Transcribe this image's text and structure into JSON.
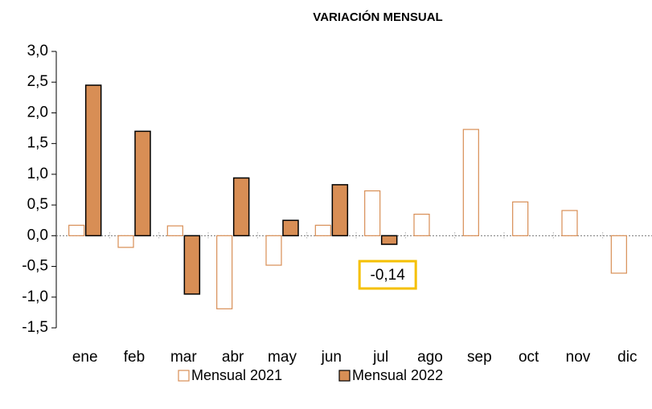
{
  "chart_data": {
    "type": "bar",
    "title": "VARIACIÓN MENSUAL",
    "categories": [
      "ene",
      "feb",
      "mar",
      "abr",
      "may",
      "jun",
      "jul",
      "ago",
      "sep",
      "oct",
      "nov",
      "dic"
    ],
    "series": [
      {
        "name": "Mensual 2021",
        "color": "#d88e55",
        "fill": "none",
        "values": [
          0.17,
          -0.19,
          0.16,
          -1.19,
          -0.48,
          0.17,
          0.73,
          0.35,
          1.73,
          0.55,
          0.41,
          -0.61
        ]
      },
      {
        "name": "Mensual 2022",
        "color": "#d88e55",
        "fill": "solid",
        "values": [
          2.45,
          1.7,
          -0.95,
          0.94,
          0.25,
          0.83,
          -0.14,
          null,
          null,
          null,
          null,
          null
        ],
        "value_labels": [
          null,
          null,
          null,
          null,
          null,
          null,
          "-0,14",
          null,
          null,
          null,
          null,
          null
        ]
      }
    ],
    "ylim": [
      -1.5,
      3.0
    ],
    "yticks": [
      {
        "value": -1.5,
        "label": "-1,5"
      },
      {
        "value": -1.0,
        "label": "-1,0"
      },
      {
        "value": -0.5,
        "label": "-0,5"
      },
      {
        "value": 0,
        "label": "0,0"
      },
      {
        "value": 0.5,
        "label": "0,5"
      },
      {
        "value": 1.0,
        "label": "1,0"
      },
      {
        "value": 1.5,
        "label": "1,5"
      },
      {
        "value": 2.0,
        "label": "2,0"
      },
      {
        "value": 2.5,
        "label": "2,5"
      },
      {
        "value": 3.0,
        "label": "3,0"
      }
    ],
    "grid": false,
    "legend": "bottom"
  }
}
